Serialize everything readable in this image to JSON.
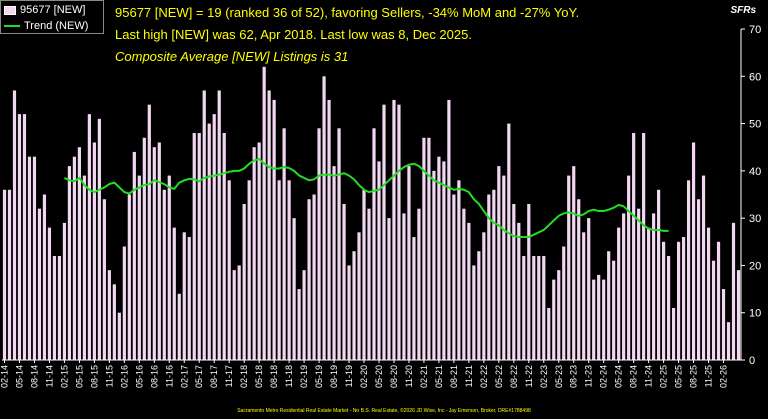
{
  "header": {
    "line1": "95677 [NEW] = 19 (ranked 36 of 52), favoring Sellers, -34% MoM and -27% YoY.",
    "line2": "Last high [NEW] was 62, Apr 2018. Last low was 8, Dec 2025.",
    "line3": "Composite Average [NEW] Listings is 31"
  },
  "unit_label": "SFRs",
  "legend": {
    "series_label": "95677 [NEW]",
    "trend_label": "Trend (NEW)"
  },
  "footer": "Sacramento Metro Residential Real Estate Market - No B.S. Real Estate, ©2026 JD Wise, Inc - Jay Emerson, Broker, DRE#1788498",
  "colors": {
    "bar": "#f2d7f2",
    "trend": "#22dd22",
    "text": "#ffff00",
    "axis": "#ffffff"
  },
  "chart_data": {
    "type": "bar",
    "start": "2014-02",
    "ylim": [
      0,
      70
    ],
    "yticks": [
      0,
      10,
      20,
      30,
      40,
      50,
      60,
      70
    ],
    "xticks": [
      "02-14",
      "05-14",
      "08-14",
      "11-14",
      "02-15",
      "05-15",
      "08-15",
      "11-15",
      "02-16",
      "05-16",
      "08-16",
      "11-16",
      "02-17",
      "05-17",
      "08-17",
      "11-17",
      "02-18",
      "05-18",
      "08-18",
      "11-18",
      "02-19",
      "05-19",
      "08-19",
      "11-19",
      "02-20",
      "05-20",
      "08-20",
      "11-20",
      "02-21",
      "05-21",
      "08-21",
      "11-21",
      "02-22",
      "05-22",
      "08-22",
      "11-22",
      "02-23",
      "05-23",
      "08-23",
      "11-23",
      "02-24",
      "05-24",
      "08-24",
      "11-24",
      "02-25",
      "05-25",
      "08-25",
      "11-25",
      "02-26"
    ],
    "series": [
      {
        "name": "95677 [NEW]",
        "type": "bar",
        "values": [
          36,
          36,
          57,
          52,
          52,
          43,
          43,
          32,
          35,
          28,
          22,
          22,
          29,
          41,
          43,
          45,
          39,
          52,
          46,
          51,
          34,
          19,
          16,
          10,
          24,
          35,
          44,
          39,
          47,
          54,
          45,
          46,
          36,
          39,
          28,
          14,
          27,
          26,
          48,
          48,
          57,
          50,
          52,
          57,
          48,
          38,
          19,
          20,
          33,
          38,
          45,
          46,
          62,
          57,
          55,
          38,
          49,
          38,
          30,
          15,
          19,
          34,
          35,
          49,
          60,
          55,
          41,
          49,
          33,
          20,
          23,
          27,
          36,
          32,
          49,
          42,
          54,
          30,
          55,
          54,
          31,
          41,
          26,
          32,
          47,
          47,
          40,
          43,
          42,
          55,
          35,
          38,
          32,
          29,
          20,
          23,
          27,
          35,
          36,
          41,
          39,
          50,
          33,
          29,
          22,
          33,
          22,
          22,
          22,
          11,
          17,
          19,
          24,
          39,
          41,
          34,
          27,
          30,
          17,
          18,
          17,
          23,
          21,
          28,
          31,
          39,
          48,
          32,
          48,
          28,
          31,
          36,
          25,
          22,
          11,
          25,
          26,
          38,
          46,
          34,
          39,
          28,
          21,
          25,
          15,
          8,
          29,
          19
        ]
      },
      {
        "name": "Trend (NEW)",
        "type": "line",
        "start_index": 12,
        "values": [
          38.5,
          38.0,
          37.8,
          38.5,
          37.0,
          36.0,
          35.5,
          36.0,
          36.5,
          37.2,
          37.5,
          36.5,
          35.5,
          35.2,
          36.0,
          36.5,
          37.0,
          37.2,
          38.0,
          37.6,
          37.2,
          36.5,
          36.2,
          37.5,
          38.0,
          38.3,
          38.2,
          37.8,
          38.5,
          38.8,
          39.0,
          39.2,
          39.5,
          39.8,
          40.0,
          40.0,
          40.5,
          41.5,
          42.2,
          42.5,
          41.5,
          40.8,
          40.5,
          40.5,
          40.8,
          40.6,
          40.0,
          39.0,
          38.5,
          38.0,
          38.2,
          39.0,
          39.2,
          39.2,
          39.0,
          39.2,
          39.5,
          39.0,
          38.2,
          37.0,
          36.0,
          35.5,
          35.8,
          36.0,
          37.0,
          38.0,
          39.0,
          40.0,
          40.8,
          41.3,
          41.5,
          41.0,
          40.0,
          39.0,
          38.0,
          37.5,
          37.0,
          36.5,
          36.0,
          36.2,
          36.0,
          35.5,
          34.0,
          33.0,
          31.5,
          30.0,
          29.0,
          28.5,
          27.5,
          26.8,
          26.2,
          26.0,
          26.0,
          26.0,
          26.5,
          27.0,
          27.5,
          28.5,
          29.5,
          30.5,
          31.0,
          31.2,
          31.0,
          30.5,
          30.8,
          31.5,
          31.8,
          31.5,
          31.5,
          31.8,
          32.2,
          32.8,
          32.5,
          31.5,
          30.5,
          29.5,
          28.5,
          27.8,
          27.5,
          27.5,
          27.3,
          27.3
        ]
      }
    ]
  }
}
